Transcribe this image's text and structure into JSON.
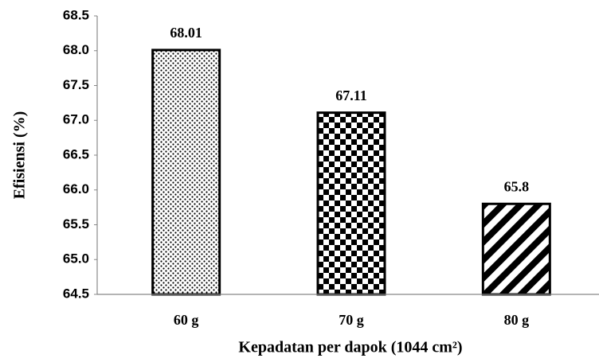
{
  "chart_data": {
    "type": "bar",
    "y_label": "Efisiensi (%)",
    "x_label": "Kepadatan per dapok (1044 cm²)",
    "categories": [
      "60 g",
      "70 g",
      "80 g"
    ],
    "values": [
      68.01,
      67.11,
      65.8
    ],
    "patterns": [
      "dots",
      "checker",
      "diagonal"
    ],
    "color": "#000000",
    "ylim": [
      64.5,
      68.5
    ],
    "yticks": [
      64.5,
      {
        "value": 65,
        "label": "65.0"
      },
      65.5,
      {
        "value": 66,
        "label": "66.0"
      },
      66.5,
      {
        "value": 67,
        "label": "67.0"
      },
      67.5,
      {
        "value": 68,
        "label": "68.0"
      },
      68.5
    ],
    "grid": false
  }
}
